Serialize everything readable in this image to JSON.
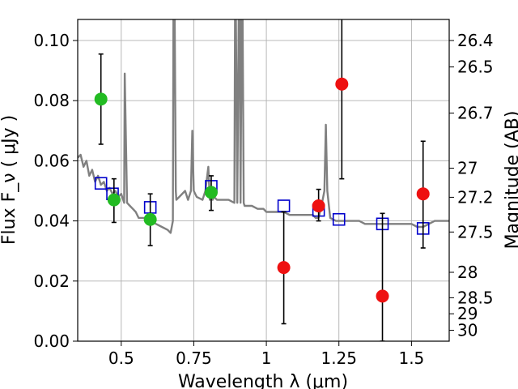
{
  "chart_data": {
    "type": "scatter",
    "xlabel": "Wavelength  λ (μm)",
    "ylabel": "Flux  F_ν  ( μJy )",
    "y2label": "Magnitude (AB)",
    "xlim": [
      0.35,
      1.63
    ],
    "ylim": [
      0.0,
      0.107
    ],
    "grid": true,
    "xticks": [
      {
        "value": 0.5,
        "label": "0.5"
      },
      {
        "value": 0.75,
        "label": "0.75"
      },
      {
        "value": 1.0,
        "label": "1"
      },
      {
        "value": 1.25,
        "label": "1.25"
      },
      {
        "value": 1.5,
        "label": "1.5"
      }
    ],
    "yticks": [
      {
        "value": 0.0,
        "label": "0.00"
      },
      {
        "value": 0.02,
        "label": "0.02"
      },
      {
        "value": 0.04,
        "label": "0.04"
      },
      {
        "value": 0.06,
        "label": "0.06"
      },
      {
        "value": 0.08,
        "label": "0.08"
      },
      {
        "value": 0.1,
        "label": "0.10"
      }
    ],
    "magticks": [
      {
        "value": 26.4,
        "label": "26.4"
      },
      {
        "value": 26.5,
        "label": "26.5"
      },
      {
        "value": 26.7,
        "label": "26.7"
      },
      {
        "value": 27.0,
        "label": "27"
      },
      {
        "value": 27.2,
        "label": "27.2"
      },
      {
        "value": 27.5,
        "label": "27.5"
      },
      {
        "value": 28.0,
        "label": "28"
      },
      {
        "value": 28.5,
        "label": "28.5"
      },
      {
        "value": 29.0,
        "label": "29"
      },
      {
        "value": 30.0,
        "label": "30"
      }
    ],
    "colors": {
      "model": "#808080",
      "model_points": "#0000cc",
      "detection": "#22bb22",
      "nondetection": "#ee1111",
      "grid": "#b0b0b0",
      "errorbar": "#000000"
    },
    "model_spectrum": {
      "x": [
        0.35,
        0.36,
        0.37,
        0.38,
        0.39,
        0.4,
        0.41,
        0.42,
        0.43,
        0.44,
        0.45,
        0.46,
        0.47,
        0.48,
        0.49,
        0.5,
        0.51,
        0.512,
        0.52,
        0.53,
        0.54,
        0.55,
        0.56,
        0.58,
        0.6,
        0.62,
        0.64,
        0.66,
        0.67,
        0.678,
        0.68,
        0.684,
        0.688,
        0.69,
        0.7,
        0.72,
        0.73,
        0.74,
        0.745,
        0.75,
        0.76,
        0.78,
        0.79,
        0.8,
        0.805,
        0.81,
        0.815,
        0.82,
        0.83,
        0.85,
        0.87,
        0.89,
        0.892,
        0.895,
        0.9,
        0.905,
        0.908,
        0.911,
        0.915,
        0.918,
        0.922,
        0.925,
        0.93,
        0.95,
        0.97,
        0.99,
        1.0,
        1.02,
        1.04,
        1.06,
        1.08,
        1.1,
        1.12,
        1.14,
        1.16,
        1.17,
        1.18,
        1.19,
        1.2,
        1.205,
        1.21,
        1.22,
        1.24,
        1.26,
        1.28,
        1.3,
        1.32,
        1.34,
        1.36,
        1.38,
        1.4,
        1.42,
        1.44,
        1.46,
        1.48,
        1.5,
        1.52,
        1.54,
        1.56,
        1.58,
        1.6,
        1.63
      ],
      "y": [
        0.061,
        0.062,
        0.058,
        0.06,
        0.055,
        0.057,
        0.053,
        0.055,
        0.052,
        0.053,
        0.05,
        0.051,
        0.049,
        0.05,
        0.048,
        0.049,
        0.046,
        0.089,
        0.046,
        0.045,
        0.044,
        0.043,
        0.041,
        0.041,
        0.04,
        0.039,
        0.038,
        0.037,
        0.036,
        0.04,
        0.11,
        0.11,
        0.05,
        0.047,
        0.048,
        0.05,
        0.047,
        0.05,
        0.07,
        0.05,
        0.048,
        0.047,
        0.05,
        0.058,
        0.047,
        0.05,
        0.047,
        0.048,
        0.047,
        0.047,
        0.047,
        0.046,
        0.11,
        0.11,
        0.046,
        0.11,
        0.11,
        0.046,
        0.11,
        0.11,
        0.046,
        0.045,
        0.045,
        0.045,
        0.044,
        0.044,
        0.043,
        0.043,
        0.043,
        0.043,
        0.042,
        0.042,
        0.042,
        0.042,
        0.042,
        0.041,
        0.041,
        0.045,
        0.05,
        0.072,
        0.05,
        0.041,
        0.04,
        0.04,
        0.04,
        0.04,
        0.04,
        0.039,
        0.039,
        0.039,
        0.039,
        0.039,
        0.039,
        0.039,
        0.039,
        0.039,
        0.038,
        0.038,
        0.039,
        0.04,
        0.04,
        0.04
      ]
    },
    "series": [
      {
        "marker": "open-square",
        "points": [
          {
            "x": 0.43,
            "y": 0.0525
          },
          {
            "x": 0.47,
            "y": 0.049
          },
          {
            "x": 0.6,
            "y": 0.0445
          },
          {
            "x": 0.81,
            "y": 0.0515
          },
          {
            "x": 1.06,
            "y": 0.045
          },
          {
            "x": 1.18,
            "y": 0.0435
          },
          {
            "x": 1.25,
            "y": 0.0405
          },
          {
            "x": 1.4,
            "y": 0.039
          },
          {
            "x": 1.54,
            "y": 0.0375
          }
        ]
      },
      {
        "marker": "filled-circle",
        "color_key": "detection",
        "points": [
          {
            "x": 0.43,
            "y": 0.0805,
            "err_lo": 0.0655,
            "err_hi": 0.0955
          },
          {
            "x": 0.475,
            "y": 0.047,
            "err_lo": 0.0395,
            "err_hi": 0.054
          },
          {
            "x": 0.6,
            "y": 0.0405,
            "err_lo": 0.0318,
            "err_hi": 0.049
          },
          {
            "x": 0.81,
            "y": 0.0495,
            "err_lo": 0.0435,
            "err_hi": 0.055
          }
        ]
      },
      {
        "marker": "filled-circle",
        "color_key": "nondetection",
        "points": [
          {
            "x": 1.06,
            "y": 0.0245,
            "err_lo": 0.0058,
            "err_hi": 0.043
          },
          {
            "x": 1.18,
            "y": 0.045,
            "err_lo": 0.04,
            "err_hi": 0.0505
          },
          {
            "x": 1.26,
            "y": 0.0855,
            "err_lo": 0.054,
            "err_hi": 0.11
          },
          {
            "x": 1.4,
            "y": 0.015,
            "err_lo": 0.0,
            "err_hi": 0.0425
          },
          {
            "x": 1.54,
            "y": 0.049,
            "err_lo": 0.031,
            "err_hi": 0.0665
          }
        ]
      }
    ]
  }
}
